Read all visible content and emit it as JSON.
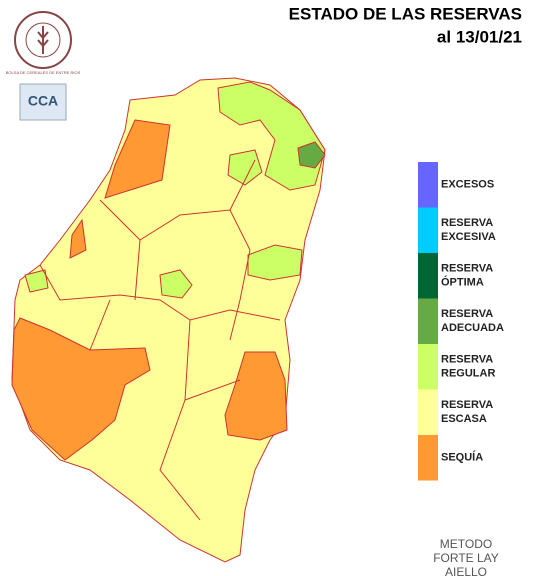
{
  "header": {
    "title": "ESTADO DE LAS RESERVAS",
    "date": "al 13/01/21"
  },
  "logo": {
    "text": "BOLSA DE CEREALES DE ENTRE RIOS",
    "badge": "CCA"
  },
  "legend": {
    "items": [
      {
        "lines": [
          "EXCESOS"
        ],
        "color": "#6666ff"
      },
      {
        "lines": [
          "RESERVA",
          "EXCESIVA"
        ],
        "color": "#00ccff"
      },
      {
        "lines": [
          "RESERVA",
          "ÓPTIMA"
        ],
        "color": "#006633"
      },
      {
        "lines": [
          "RESERVA",
          "ADECUADA"
        ],
        "color": "#66aa44"
      },
      {
        "lines": [
          "RESERVA",
          "REGULAR"
        ],
        "color": "#ccff66"
      },
      {
        "lines": [
          "RESERVA",
          "ESCASA"
        ],
        "color": "#ffff99"
      },
      {
        "lines": [
          "SEQUÍA"
        ],
        "color": "#ff9933"
      }
    ]
  },
  "method": {
    "lines": [
      "METODO",
      "FORTE LAY",
      "AIELLO"
    ]
  }
}
